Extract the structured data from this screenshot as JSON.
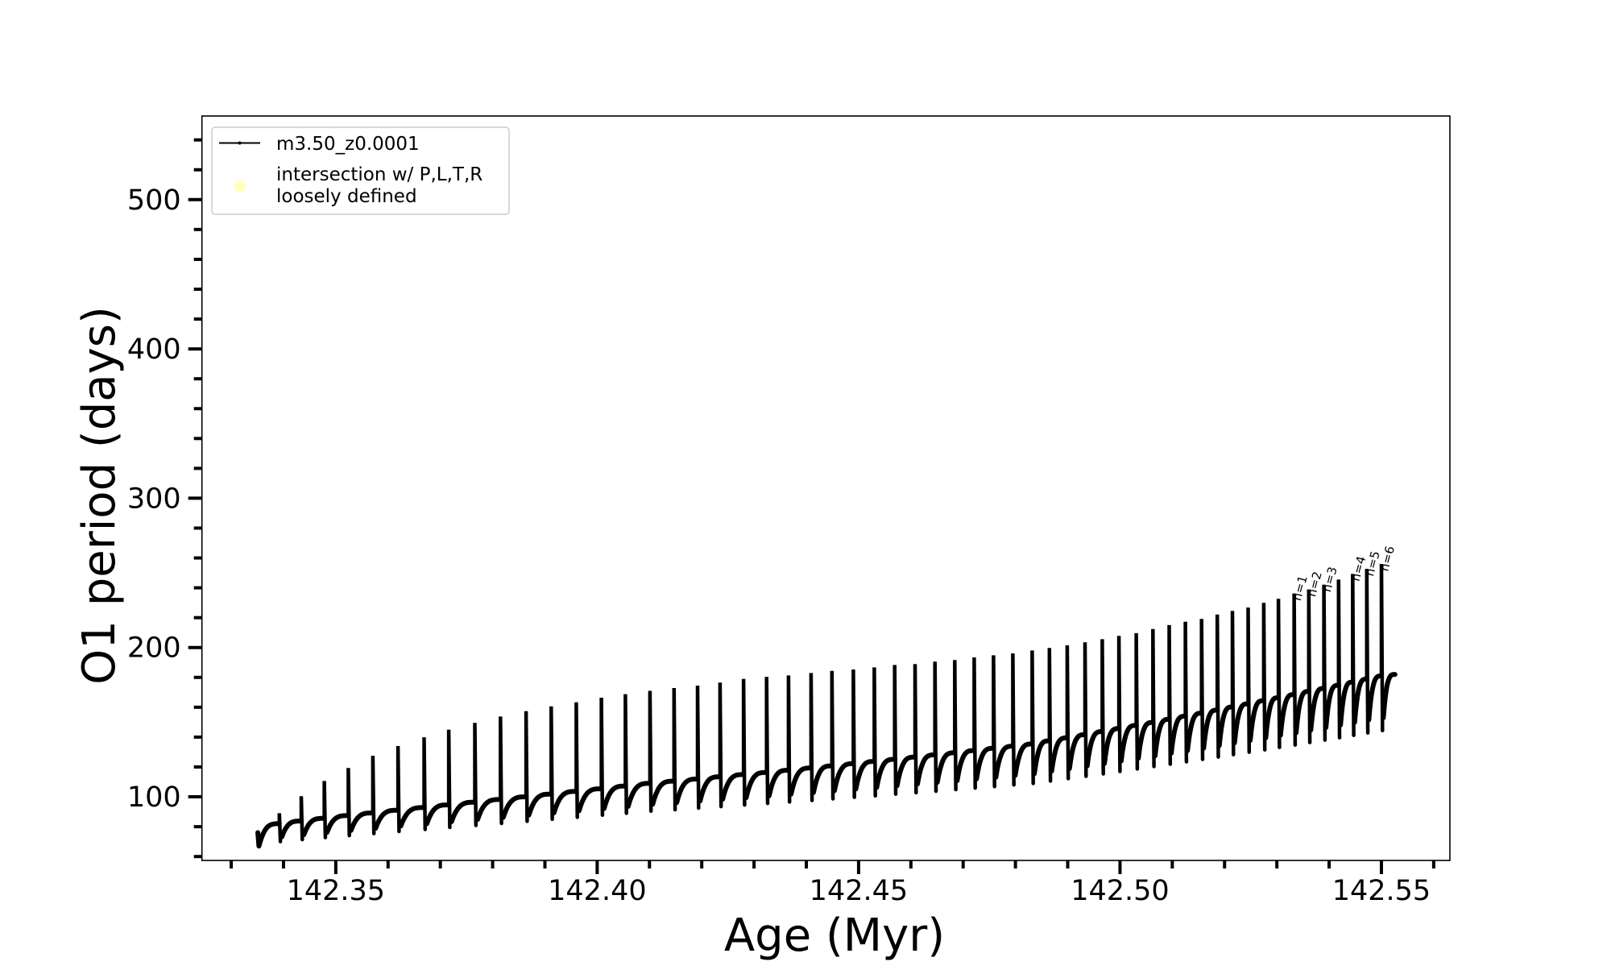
{
  "chart_data": {
    "type": "line",
    "title": "",
    "xlabel": "Age (Myr)",
    "ylabel": "O1 period (days)",
    "xlim": [
      142.3244,
      142.5631
    ],
    "ylim": [
      57.4,
      556
    ],
    "grid": false,
    "legend_position": "top-left",
    "x_major_ticks": [
      142.35,
      142.4,
      142.45,
      142.5,
      142.55
    ],
    "x_tick_labels": [
      "142.35",
      "142.40",
      "142.45",
      "142.50",
      "142.55"
    ],
    "x_minor_step": 0.01,
    "y_major_ticks": [
      100,
      200,
      300,
      400,
      500
    ],
    "y_tick_labels": [
      "100",
      "200",
      "300",
      "400",
      "500"
    ],
    "y_minor_step": 20,
    "legend": [
      {
        "label": "m3.50_z0.0001",
        "marker": "line-with-dots",
        "color": "#000000"
      },
      {
        "label": "intersection w/ P,L,T,R\nloosely defined",
        "label_lines": [
          "intersection w/ P,L,T,R",
          "loosely defined"
        ],
        "marker": "circle",
        "color": "#ffffc0"
      }
    ],
    "series": [
      {
        "name": "m3.50_z0.0001",
        "color": "#000000",
        "start": {
          "age": 142.3351,
          "period": 76,
          "first_trough": 67
        },
        "end": {
          "age": 142.5526,
          "period": 182
        },
        "pulse_ages": [
          142.3392,
          142.3434,
          142.3478,
          142.3524,
          142.3571,
          142.3619,
          142.3669,
          142.3716,
          142.3766,
          142.3815,
          142.3864,
          142.3912,
          142.396,
          142.4008,
          142.4054,
          142.4101,
          142.4147,
          142.4192,
          142.4235,
          142.428,
          142.4324,
          142.4366,
          142.4409,
          142.4449,
          142.449,
          142.453,
          142.4569,
          142.4608,
          142.4646,
          142.4684,
          142.4721,
          142.4758,
          142.4795,
          142.4832,
          142.4865,
          142.4899,
          142.4933,
          142.4966,
          142.4998,
          142.5031,
          142.5063,
          142.5094,
          142.5125,
          142.5156,
          142.5186,
          142.5215,
          142.5245,
          142.5275,
          142.5303,
          142.5333,
          142.5361,
          142.539,
          142.5418,
          142.5445,
          142.5472,
          142.55
        ],
        "pulse_peak_period": [
          89,
          100.4,
          110.6,
          119.3,
          127.5,
          134,
          139.9,
          145,
          149.5,
          153.8,
          157.4,
          160.6,
          163.3,
          166.4,
          168.8,
          171,
          172.9,
          174.5,
          176.5,
          179,
          180.4,
          181.3,
          182.9,
          184.3,
          185.3,
          186.7,
          188.3,
          188.9,
          190.5,
          191.6,
          193.4,
          194.8,
          196.1,
          198,
          199.7,
          201.5,
          203.5,
          205.6,
          207.8,
          209.6,
          212.4,
          215,
          217.3,
          219.1,
          222.1,
          224.5,
          226.8,
          229.9,
          232.6,
          236.2,
          238.9,
          242.1,
          245.5,
          249.3,
          252.7,
          256
        ],
        "pulse_plateau_period": [
          82,
          83.8,
          85.6,
          87.4,
          89.2,
          91,
          92.8,
          94.6,
          96.4,
          98.2,
          100,
          101.8,
          103.6,
          105.4,
          107.2,
          109,
          110.5,
          111.9,
          113.4,
          114.9,
          116.3,
          117.8,
          119.3,
          120.7,
          122.2,
          123.7,
          125.1,
          126.6,
          128.1,
          129.5,
          131,
          132.5,
          133.9,
          135.4,
          137.5,
          139.5,
          141.6,
          143.7,
          145.7,
          147.8,
          149.8,
          151.9,
          154,
          156,
          158.1,
          160.2,
          162.3,
          164.4,
          166.4,
          168.5,
          170.6,
          172.6,
          174.7,
          176.8,
          178.9,
          181
        ],
        "pulse_trough_period": [
          70,
          71.4,
          72.7,
          74.1,
          75.4,
          76.8,
          78.2,
          79.5,
          80.9,
          82.2,
          83.6,
          85,
          86.3,
          87.7,
          89,
          90.4,
          91.4,
          92.5,
          93.5,
          94.5,
          95.6,
          96.6,
          97.6,
          98.7,
          99.7,
          100.7,
          101.8,
          102.8,
          103.8,
          104.9,
          105.9,
          106.9,
          108,
          109,
          110.6,
          112.2,
          113.8,
          115.4,
          117,
          118.7,
          120.3,
          121.9,
          123.5,
          125.1,
          126.7,
          128.3,
          129.9,
          131.5,
          133.1,
          134.7,
          136.4,
          138,
          139.6,
          141.2,
          142.8,
          144.4
        ]
      }
    ],
    "annotations": [
      {
        "text": "n=1",
        "pulse_index": 49
      },
      {
        "text": "n=2",
        "pulse_index": 50
      },
      {
        "text": "n=3",
        "pulse_index": 51
      },
      {
        "text": "n=4",
        "pulse_index": 53
      },
      {
        "text": "n=5",
        "pulse_index": 54
      },
      {
        "text": "n=6",
        "pulse_index": 55
      }
    ]
  }
}
